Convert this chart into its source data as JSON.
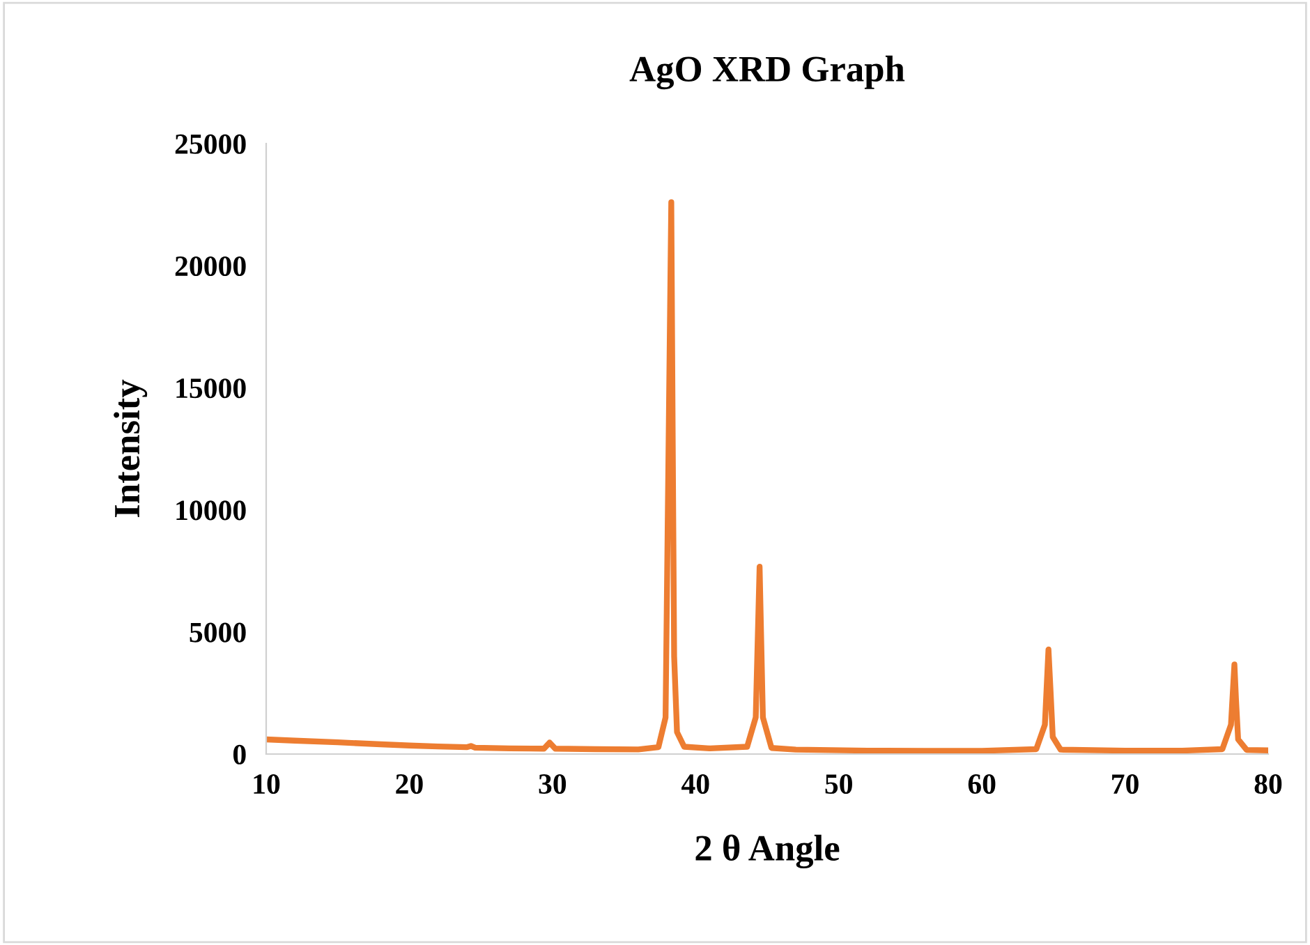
{
  "chart_data": {
    "type": "line",
    "title": "AgO XRD Graph",
    "xlabel": "2 θ Angle",
    "ylabel": "Intensity",
    "series": [
      {
        "color": "#ed7d31",
        "x": [
          10,
          12,
          15,
          18,
          20,
          22,
          24,
          24.3,
          24.6,
          27,
          29.4,
          29.8,
          30.2,
          33,
          36,
          37.4,
          37.9,
          38.1,
          38.3,
          38.4,
          38.5,
          38.7,
          39.2,
          41,
          43.6,
          44.2,
          44.47,
          44.7,
          45.3,
          47,
          49.5,
          52,
          56,
          60,
          63.8,
          64.4,
          64.65,
          64.8,
          64.95,
          65.5,
          70,
          74,
          76.8,
          77.4,
          77.64,
          77.75,
          77.9,
          78.5,
          80
        ],
        "values": [
          600,
          550,
          480,
          400,
          350,
          310,
          280,
          330,
          260,
          230,
          220,
          470,
          220,
          200,
          190,
          280,
          1500,
          12000,
          22600,
          12900,
          4000,
          900,
          300,
          230,
          300,
          1500,
          7670,
          1500,
          250,
          180,
          160,
          140,
          130,
          130,
          200,
          1200,
          4280,
          2530,
          700,
          180,
          140,
          140,
          200,
          1200,
          3670,
          2240,
          600,
          170,
          150
        ]
      }
    ],
    "xlim": [
      10,
      80
    ],
    "xticks": [
      10,
      20,
      30,
      40,
      50,
      60,
      70,
      80
    ],
    "ylim": [
      0,
      25000
    ],
    "yticks": [
      0,
      5000,
      10000,
      15000,
      20000,
      25000
    ],
    "grid": false,
    "legend": false,
    "marker": "none",
    "line_style": "solid"
  }
}
